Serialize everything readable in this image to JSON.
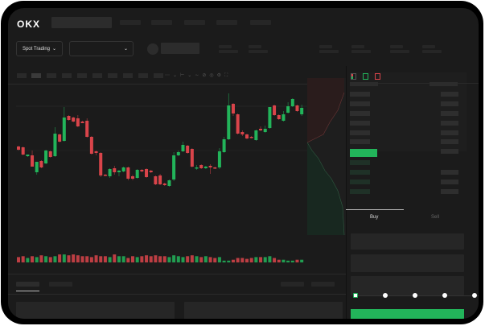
{
  "header": {
    "logo": "OKX",
    "nav_items": 5
  },
  "toolbar": {
    "market_select": "Spot Trading",
    "pair_select": ""
  },
  "order_form": {
    "tabs": [
      "Buy",
      "Sell"
    ],
    "active_tab": "Buy",
    "slider_percent": 0,
    "slider_stops": [
      0,
      25,
      50,
      75,
      100
    ]
  },
  "colors": {
    "up": "#22b45a",
    "down": "#d9444a",
    "background": "#1b1b1b",
    "frame": "#000000"
  },
  "icons": [
    "chevron-down-icon",
    "order-book-both-icon",
    "order-book-bids-icon",
    "order-book-asks-icon",
    "drawing-icon",
    "screenshot-icon",
    "settings-icon",
    "fullscreen-icon"
  ],
  "chart_data": {
    "type": "candlestick",
    "columns": [
      "open",
      "high",
      "low",
      "close"
    ],
    "candles": [
      [
        69,
        70,
        64,
        65
      ],
      [
        68,
        69,
        58,
        59
      ],
      [
        57,
        59,
        56,
        59
      ],
      [
        58,
        64,
        44,
        44
      ],
      [
        37,
        50,
        34,
        50
      ],
      [
        51,
        52,
        42,
        43
      ],
      [
        48,
        65,
        47,
        64
      ],
      [
        63,
        64,
        55,
        56
      ],
      [
        57,
        93,
        56,
        85
      ],
      [
        84,
        85,
        74,
        75
      ],
      [
        76,
        118,
        75,
        105
      ],
      [
        107,
        108,
        101,
        102
      ],
      [
        105,
        106,
        99,
        100
      ],
      [
        104,
        108,
        93,
        94
      ],
      [
        100,
        101,
        98,
        98
      ],
      [
        101,
        104,
        80,
        81
      ],
      [
        81,
        82,
        59,
        60
      ],
      [
        63,
        64,
        58,
        61
      ],
      [
        61,
        62,
        31,
        33
      ],
      [
        34,
        35,
        32,
        33
      ],
      [
        32,
        42,
        30,
        41
      ],
      [
        42,
        45,
        34,
        37
      ],
      [
        37,
        40,
        32,
        39
      ],
      [
        38,
        44,
        37,
        43
      ],
      [
        43,
        44,
        27,
        29
      ],
      [
        32,
        34,
        27,
        29
      ],
      [
        30,
        41,
        29,
        40
      ],
      [
        40,
        41,
        37,
        38
      ],
      [
        41,
        42,
        30,
        31
      ],
      [
        39,
        40,
        36,
        37
      ],
      [
        32,
        33,
        21,
        22
      ],
      [
        33,
        35,
        21,
        22
      ],
      [
        23,
        24,
        20,
        21
      ],
      [
        20,
        28,
        19,
        27
      ],
      [
        28,
        62,
        26,
        58
      ],
      [
        58,
        64,
        57,
        62
      ],
      [
        63,
        75,
        62,
        71
      ],
      [
        70,
        71,
        60,
        61
      ],
      [
        66,
        67,
        43,
        44
      ],
      [
        43,
        46,
        40,
        43
      ],
      [
        46,
        47,
        41,
        42
      ],
      [
        42,
        45,
        41,
        44
      ],
      [
        45,
        47,
        35,
        43
      ],
      [
        43,
        44,
        41,
        42
      ],
      [
        43,
        67,
        41,
        63
      ],
      [
        62,
        81,
        61,
        78
      ],
      [
        78,
        135,
        77,
        120
      ],
      [
        122,
        123,
        107,
        110
      ],
      [
        109,
        110,
        84,
        85
      ],
      [
        87,
        89,
        82,
        84
      ],
      [
        84,
        85,
        78,
        79
      ],
      [
        81,
        82,
        79,
        80
      ],
      [
        77,
        90,
        76,
        89
      ],
      [
        91,
        94,
        88,
        89
      ],
      [
        87,
        95,
        86,
        91
      ],
      [
        92,
        118,
        91,
        118
      ],
      [
        120,
        121,
        107,
        108
      ],
      [
        108,
        109,
        102,
        103
      ],
      [
        101,
        113,
        100,
        109
      ],
      [
        111,
        124,
        110,
        119
      ],
      [
        119,
        129,
        118,
        128
      ],
      [
        120,
        121,
        112,
        113
      ],
      [
        109,
        121,
        107,
        117
      ]
    ],
    "volumes": [
      6,
      7,
      5,
      7,
      6,
      8,
      7,
      6,
      7,
      9,
      9,
      8,
      9,
      8,
      7,
      7,
      6,
      8,
      7,
      7,
      6,
      9,
      7,
      7,
      5,
      7,
      6,
      7,
      8,
      7,
      8,
      7,
      7,
      6,
      8,
      7,
      6,
      7,
      8,
      7,
      6,
      7,
      6,
      5,
      6,
      2,
      2,
      3,
      5,
      5,
      4,
      5,
      6,
      6,
      6,
      7,
      5,
      3,
      3,
      2,
      2,
      3,
      3
    ]
  }
}
